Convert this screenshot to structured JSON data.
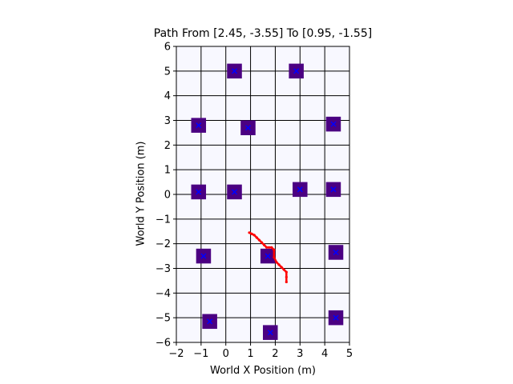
{
  "chart_data": {
    "type": "scatter",
    "title": "Path From [2.45, -3.55] To [0.95, -1.55]",
    "xlabel": "World X Position (m)",
    "ylabel": "World Y Position (m)",
    "xlim": [
      -2,
      5
    ],
    "ylim": [
      -6,
      6
    ],
    "x_ticks": [
      "−2",
      "−1",
      "0",
      "1",
      "2",
      "3",
      "4",
      "5"
    ],
    "y_ticks": [
      "−6",
      "−5",
      "−4",
      "−3",
      "−2",
      "−1",
      "0",
      "1",
      "2",
      "3",
      "4",
      "5",
      "6"
    ],
    "grid": true,
    "obstacle_size": 0.6,
    "colors": {
      "background": "#f8f8ff",
      "grid": "#000000",
      "obstacle": "#4b0082",
      "obstacle_marker": "#0000ff",
      "path": "#ff0000"
    },
    "obstacles": [
      {
        "x": 0.35,
        "y": 5.0
      },
      {
        "x": 2.85,
        "y": 5.0
      },
      {
        "x": -1.1,
        "y": 2.8
      },
      {
        "x": 0.9,
        "y": 2.7
      },
      {
        "x": 4.35,
        "y": 2.85
      },
      {
        "x": -1.1,
        "y": 0.1
      },
      {
        "x": 0.35,
        "y": 0.1
      },
      {
        "x": 3.0,
        "y": 0.2
      },
      {
        "x": 4.35,
        "y": 0.2
      },
      {
        "x": -0.9,
        "y": -2.5
      },
      {
        "x": 1.7,
        "y": -2.5
      },
      {
        "x": 4.45,
        "y": -2.35
      },
      {
        "x": -0.65,
        "y": -5.15
      },
      {
        "x": 1.8,
        "y": -5.6
      },
      {
        "x": 4.45,
        "y": -5.0
      }
    ],
    "series": [
      {
        "x": [
          2.45,
          2.45,
          2.45,
          2.35,
          2.25,
          2.15,
          2.05,
          1.95,
          1.95,
          1.85,
          1.75,
          1.65,
          1.55,
          1.45,
          1.35,
          1.25,
          1.15,
          1.05,
          0.95
        ],
        "y": [
          -3.55,
          -3.35,
          -3.15,
          -3.05,
          -2.95,
          -2.85,
          -2.75,
          -2.55,
          -2.25,
          -2.15,
          -2.15,
          -2.15,
          -2.05,
          -1.95,
          -1.85,
          -1.75,
          -1.65,
          -1.6,
          -1.55
        ]
      }
    ]
  }
}
